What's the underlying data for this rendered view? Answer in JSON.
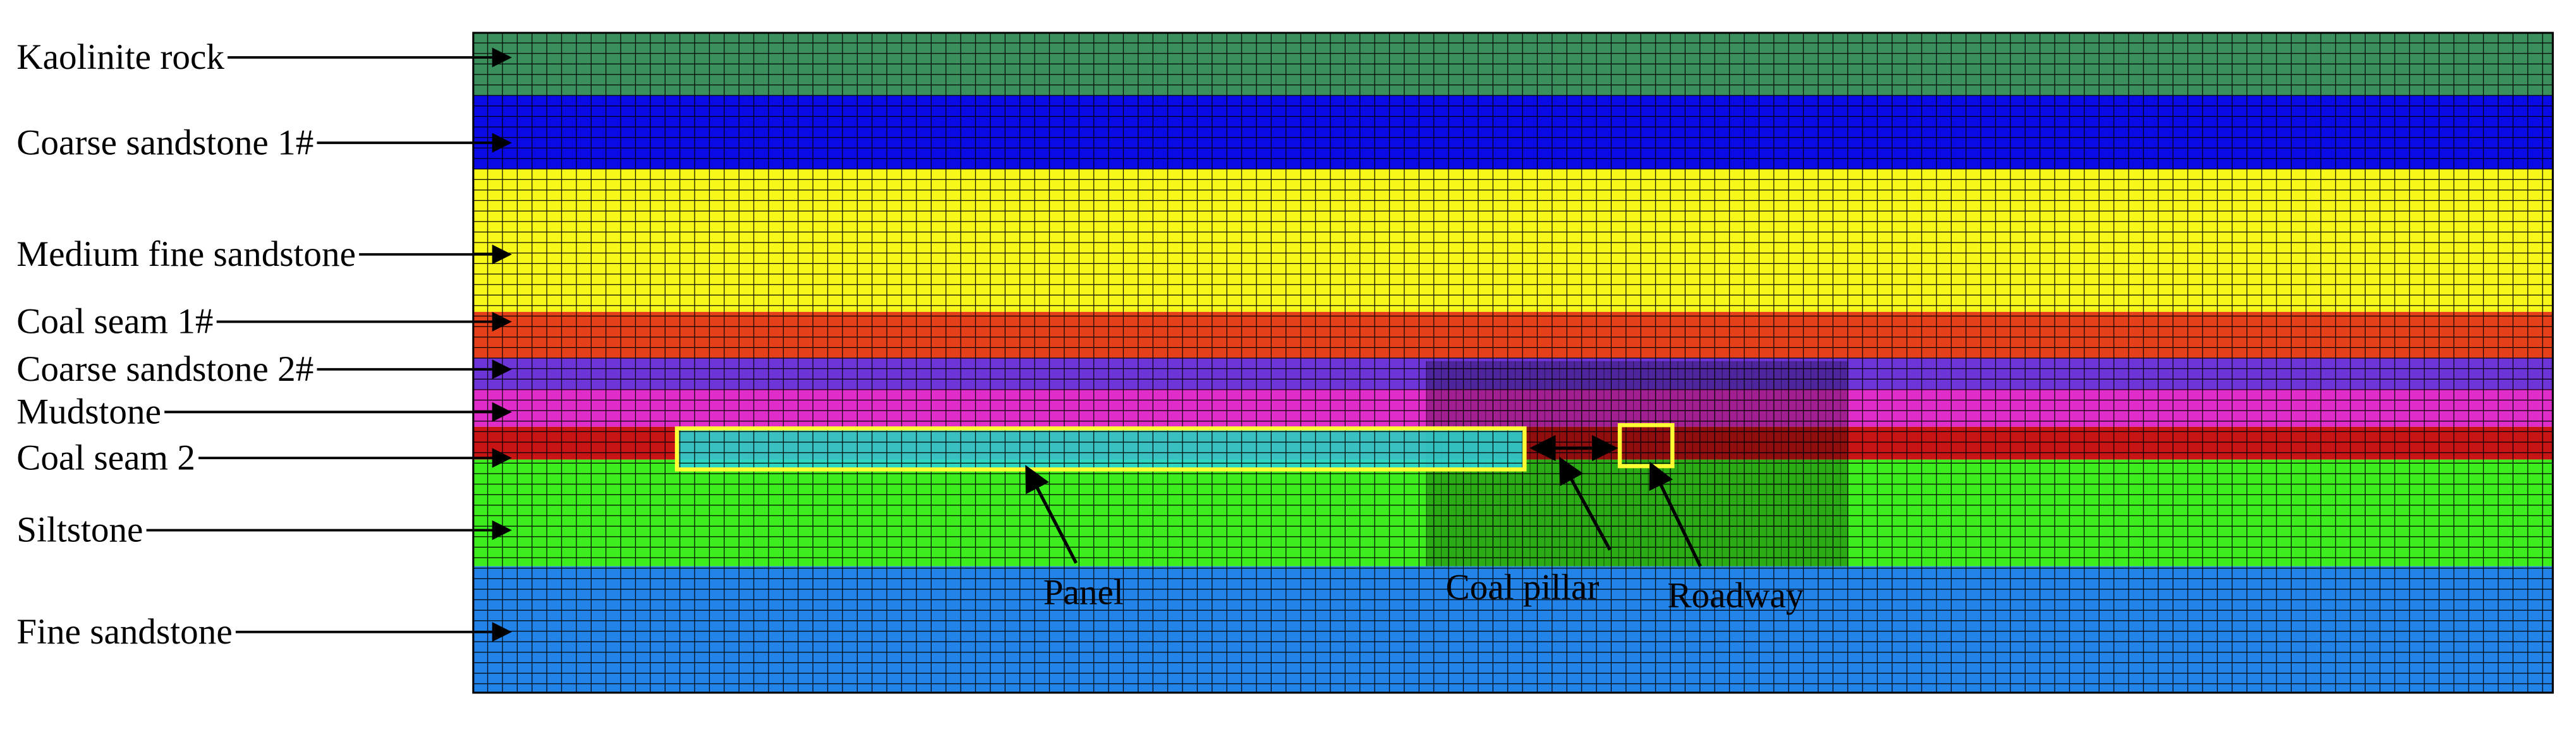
{
  "layers": [
    {
      "label": "Kaolinite rock"
    },
    {
      "label": "Coarse sandstone 1#"
    },
    {
      "label": "Medium fine sandstone"
    },
    {
      "label": "Coal seam 1#"
    },
    {
      "label": "Coarse sandstone 2#"
    },
    {
      "label": "Mudstone"
    },
    {
      "label": "Coal seam 2"
    },
    {
      "label": "Siltstone"
    },
    {
      "label": "Fine sandstone"
    }
  ],
  "annotations": {
    "panel": "Panel",
    "coal_pillar": "Coal pillar",
    "roadway": "Roadway"
  }
}
